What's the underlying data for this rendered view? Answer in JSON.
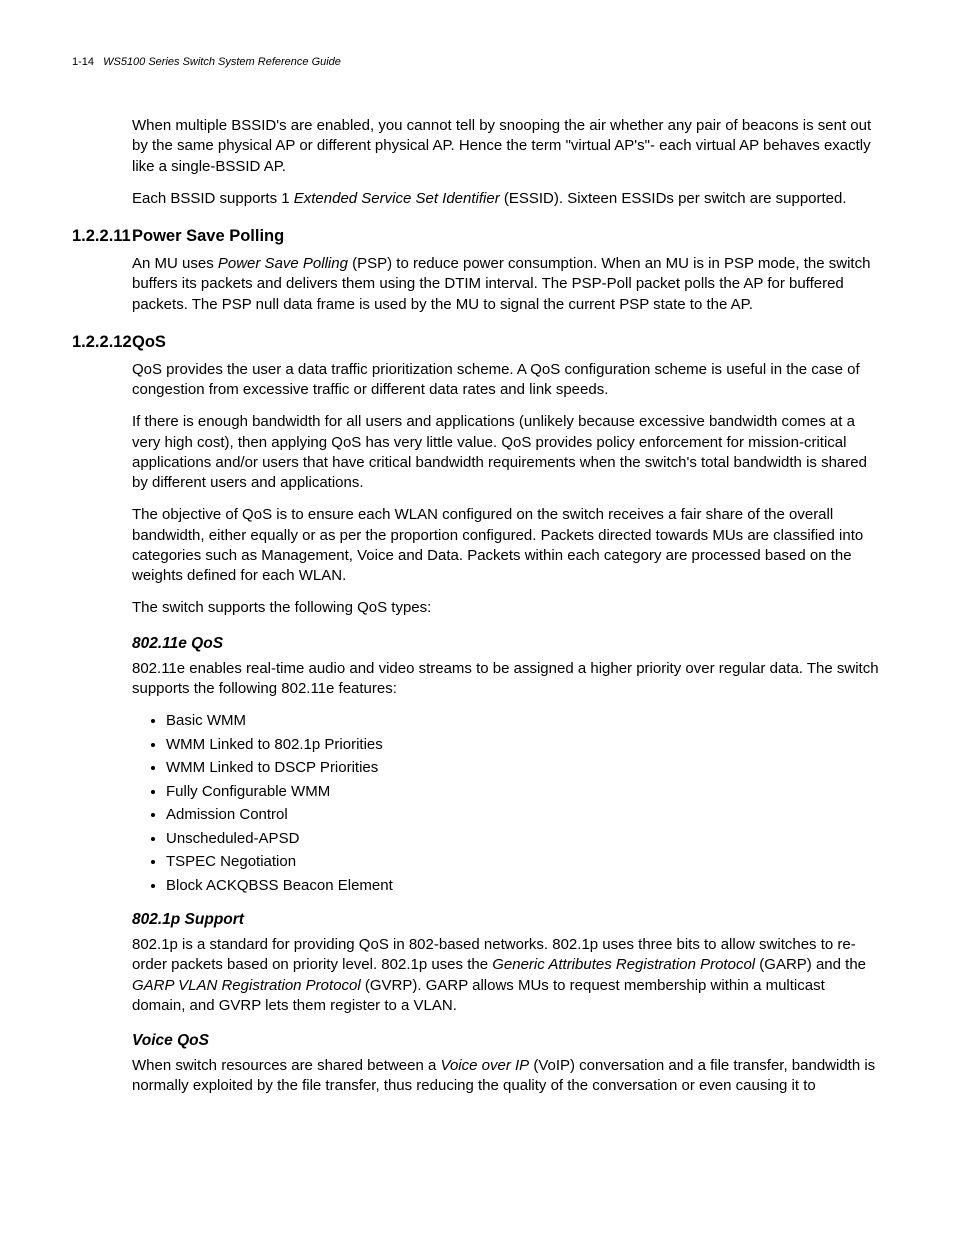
{
  "runningHeader": {
    "pageNumber": "1-14",
    "docTitle": "WS5100 Series Switch System Reference Guide"
  },
  "intro": {
    "p1": "When multiple BSSID's are enabled, you cannot tell by snooping the air whether any pair of beacons is sent out by the same physical AP or different physical AP. Hence the term \"virtual AP's\"- each virtual AP behaves exactly like a single-BSSID AP.",
    "p2_a": "Each BSSID supports 1 ",
    "p2_em": "Extended Service Set Identifier",
    "p2_b": " (ESSID). Sixteen ESSIDs per switch are supported."
  },
  "sec11": {
    "num": "1.2.2.11",
    "title": "Power Save Polling",
    "p_a": "An MU uses ",
    "p_em": "Power Save Polling",
    "p_b": " (PSP) to reduce power consumption. When an MU is in PSP mode, the switch buffers its packets and delivers them using the DTIM interval. The PSP-Poll packet polls the AP for buffered packets. The PSP null data frame is used by the MU to signal the current PSP state to the AP."
  },
  "sec12": {
    "num": "1.2.2.12",
    "title": "QoS",
    "p1": "QoS provides the user a data traffic prioritization scheme. A QoS configuration scheme is useful in the case of congestion from excessive traffic or different data rates and link speeds.",
    "p2": "If there is enough bandwidth for all users and applications (unlikely because excessive bandwidth comes at a very high cost), then applying QoS has very little value. QoS provides policy enforcement for mission-critical applications and/or users that have critical bandwidth requirements when the switch's total bandwidth is shared by different users and applications.",
    "p3": "The objective of QoS is to ensure each WLAN configured on the switch receives a fair share of the overall bandwidth, either equally or as per the proportion configured. Packets directed towards MUs are classified into categories such as Management, Voice and Data. Packets within each category are processed based on the weights defined for each WLAN.",
    "p4": "The switch supports the following QoS types:"
  },
  "sub80211e": {
    "title": "802.11e QoS",
    "p": "802.11e enables real-time audio and video streams to be assigned a higher priority over regular data. The switch supports the following 802.11e features:",
    "items": [
      "Basic WMM",
      "WMM Linked to 802.1p Priorities",
      "WMM Linked to DSCP Priorities",
      "Fully Configurable WMM",
      "Admission Control",
      "Unscheduled-APSD",
      "TSPEC Negotiation",
      "Block ACKQBSS Beacon Element"
    ]
  },
  "sub8021p": {
    "title": "802.1p Support",
    "p_a": "802.1p is a standard for providing QoS in 802-based networks. 802.1p uses three bits to allow switches to re-order packets based on priority level. 802.1p uses the ",
    "p_em1": "Generic Attributes Registration Protocol",
    "p_mid": " (GARP) and the ",
    "p_em2": "GARP VLAN Registration Protocol",
    "p_b": " (GVRP). GARP allows MUs to request membership within a multicast domain, and GVRP lets them register to a VLAN."
  },
  "subVoice": {
    "title": "Voice QoS",
    "p_a": "When switch resources are shared between a ",
    "p_em": "Voice over IP",
    "p_b": " (VoIP) conversation and a file transfer, bandwidth is normally exploited by the file transfer, thus reducing the quality of the conversation or even causing it to"
  }
}
